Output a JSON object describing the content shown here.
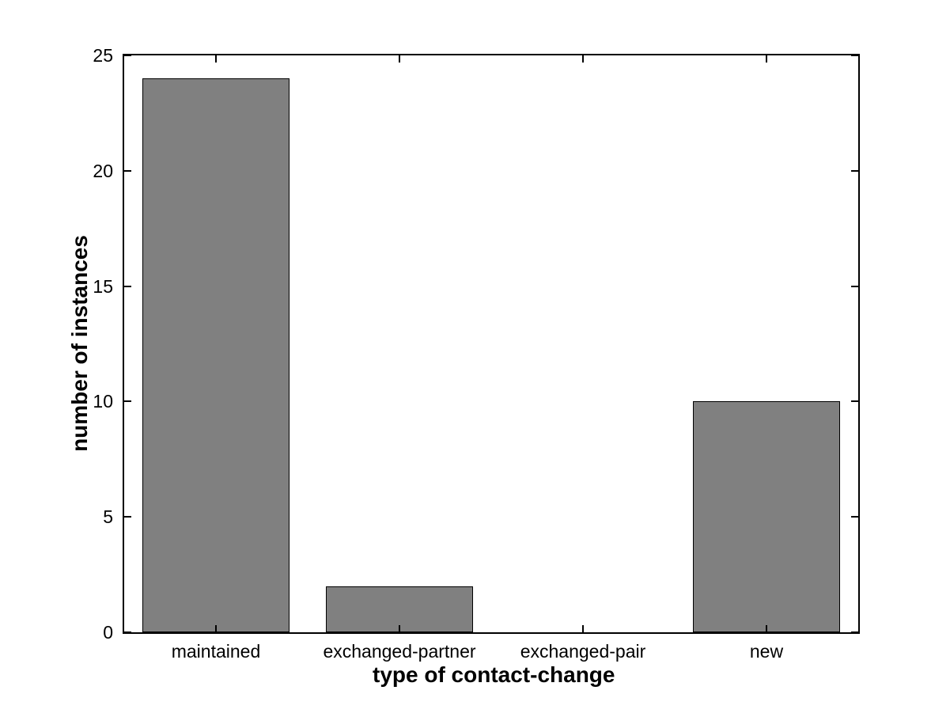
{
  "figure": {
    "background": "#ffffff"
  },
  "chart_data": {
    "type": "bar",
    "title": "",
    "categories": [
      "maintained",
      "exchanged-partner",
      "exchanged-pair",
      "new"
    ],
    "values": [
      24,
      2,
      0,
      10
    ],
    "xlabel": "type of contact-change",
    "ylabel": "number of instances",
    "ylim": [
      0,
      25
    ],
    "yticks": [
      0,
      5,
      10,
      15,
      20,
      25
    ],
    "bar_width_fraction": 0.8,
    "grid": false,
    "legend": "none",
    "tick_direction": "in",
    "box": true,
    "colors": {
      "bar_fill": "#808080",
      "bar_edge": "#000000",
      "axis": "#000000",
      "text": "#000000",
      "background": "#ffffff"
    }
  }
}
